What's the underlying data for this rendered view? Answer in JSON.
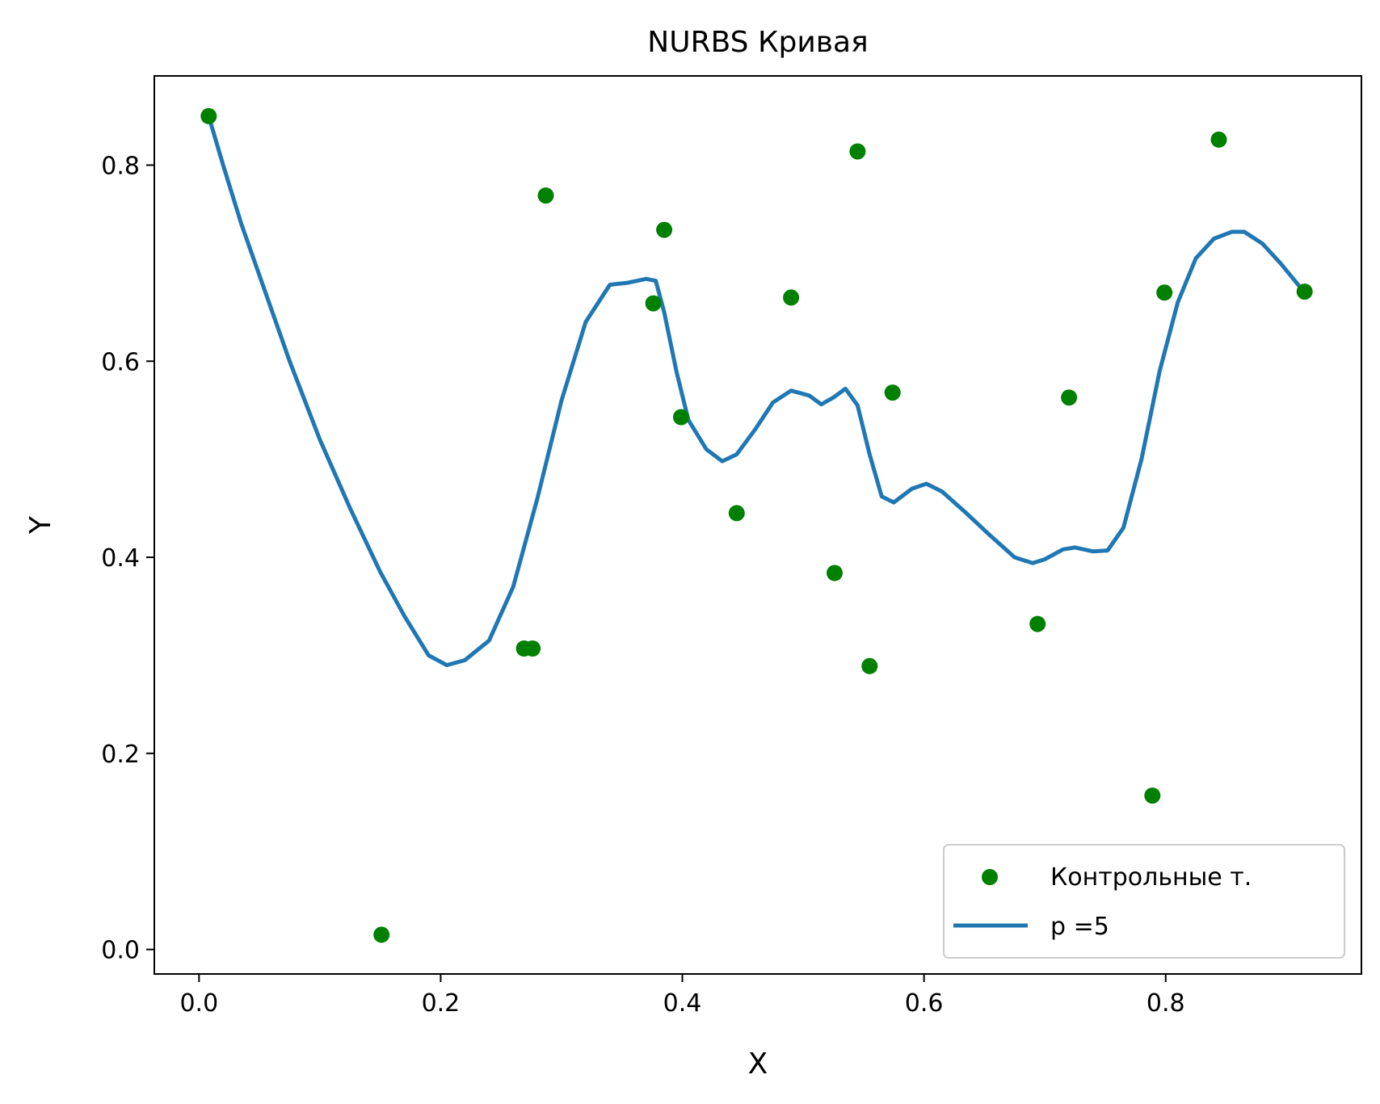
{
  "chart_data": {
    "type": "scatter",
    "title": "NURBS Кривая",
    "xlabel": "X",
    "ylabel": "Y",
    "xlim": [
      -0.037,
      0.962
    ],
    "ylim": [
      -0.025,
      0.891
    ],
    "x_ticks": [
      "0.0",
      "0.2",
      "0.4",
      "0.6",
      "0.8"
    ],
    "y_ticks": [
      "0.0",
      "0.2",
      "0.4",
      "0.6",
      "0.8"
    ],
    "grid": false,
    "legend_position": "lower right",
    "series": [
      {
        "name": "Контрольные т.",
        "type": "scatter",
        "color": "#008000",
        "points": [
          [
            0.008,
            0.85
          ],
          [
            0.151,
            0.015
          ],
          [
            0.269,
            0.307
          ],
          [
            0.276,
            0.307
          ],
          [
            0.287,
            0.769
          ],
          [
            0.376,
            0.659
          ],
          [
            0.385,
            0.734
          ],
          [
            0.399,
            0.543
          ],
          [
            0.445,
            0.445
          ],
          [
            0.49,
            0.665
          ],
          [
            0.526,
            0.384
          ],
          [
            0.545,
            0.814
          ],
          [
            0.555,
            0.289
          ],
          [
            0.574,
            0.568
          ],
          [
            0.694,
            0.332
          ],
          [
            0.72,
            0.563
          ],
          [
            0.789,
            0.157
          ],
          [
            0.799,
            0.67
          ],
          [
            0.844,
            0.826
          ],
          [
            0.915,
            0.671
          ]
        ]
      },
      {
        "name": "p =5",
        "type": "line",
        "color": "#1f77b4",
        "points": [
          [
            0.008,
            0.85
          ],
          [
            0.02,
            0.8
          ],
          [
            0.035,
            0.74
          ],
          [
            0.055,
            0.67
          ],
          [
            0.075,
            0.6
          ],
          [
            0.1,
            0.52
          ],
          [
            0.125,
            0.45
          ],
          [
            0.15,
            0.385
          ],
          [
            0.17,
            0.34
          ],
          [
            0.19,
            0.3
          ],
          [
            0.205,
            0.29
          ],
          [
            0.22,
            0.295
          ],
          [
            0.24,
            0.315
          ],
          [
            0.26,
            0.37
          ],
          [
            0.28,
            0.46
          ],
          [
            0.3,
            0.56
          ],
          [
            0.32,
            0.64
          ],
          [
            0.34,
            0.678
          ],
          [
            0.355,
            0.68
          ],
          [
            0.37,
            0.684
          ],
          [
            0.378,
            0.682
          ],
          [
            0.385,
            0.65
          ],
          [
            0.395,
            0.59
          ],
          [
            0.405,
            0.54
          ],
          [
            0.42,
            0.51
          ],
          [
            0.433,
            0.498
          ],
          [
            0.445,
            0.505
          ],
          [
            0.46,
            0.53
          ],
          [
            0.475,
            0.558
          ],
          [
            0.49,
            0.57
          ],
          [
            0.505,
            0.565
          ],
          [
            0.515,
            0.556
          ],
          [
            0.525,
            0.563
          ],
          [
            0.535,
            0.572
          ],
          [
            0.545,
            0.555
          ],
          [
            0.555,
            0.505
          ],
          [
            0.565,
            0.462
          ],
          [
            0.575,
            0.456
          ],
          [
            0.59,
            0.47
          ],
          [
            0.602,
            0.475
          ],
          [
            0.615,
            0.467
          ],
          [
            0.635,
            0.445
          ],
          [
            0.655,
            0.422
          ],
          [
            0.675,
            0.4
          ],
          [
            0.69,
            0.394
          ],
          [
            0.7,
            0.398
          ],
          [
            0.715,
            0.408
          ],
          [
            0.725,
            0.41
          ],
          [
            0.74,
            0.406
          ],
          [
            0.752,
            0.407
          ],
          [
            0.765,
            0.43
          ],
          [
            0.78,
            0.5
          ],
          [
            0.795,
            0.59
          ],
          [
            0.81,
            0.66
          ],
          [
            0.825,
            0.705
          ],
          [
            0.84,
            0.725
          ],
          [
            0.855,
            0.732
          ],
          [
            0.865,
            0.732
          ],
          [
            0.88,
            0.72
          ],
          [
            0.895,
            0.7
          ],
          [
            0.915,
            0.67
          ]
        ]
      }
    ]
  }
}
